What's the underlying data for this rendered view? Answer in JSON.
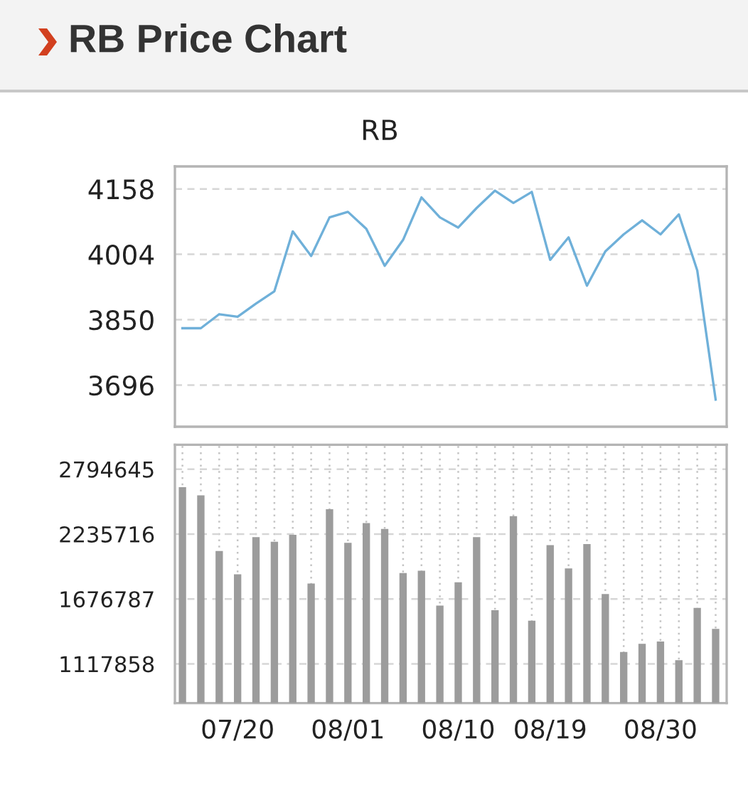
{
  "chart_data": [
    {
      "type": "line",
      "title": "RB Price Chart",
      "subtitle": "RB",
      "categories": [
        null,
        null,
        null,
        null,
        null,
        null,
        null,
        null,
        null,
        null,
        null,
        null,
        null,
        null,
        null,
        null,
        null,
        null,
        null,
        null,
        null,
        null,
        null,
        null,
        null,
        null,
        null,
        null,
        null,
        null
      ],
      "series": [
        {
          "color": "#6fb0d9",
          "values": [
            3830,
            3830,
            3863,
            3857,
            3888,
            3917,
            4058,
            4000,
            4091,
            4104,
            4064,
            3977,
            4038,
            4138,
            4091,
            4067,
            4113,
            4154,
            4125,
            4151,
            3991,
            4044,
            3930,
            4011,
            4051,
            4084,
            4051,
            4098,
            3966,
            3662
          ]
        }
      ],
      "ylim": [
        3598,
        4211
      ],
      "yticks": [
        3696,
        3850,
        4004,
        4158
      ],
      "grid": "y",
      "tick_labels": "y"
    },
    {
      "type": "bar",
      "categories": [
        null,
        null,
        null,
        "07/20",
        null,
        null,
        null,
        null,
        null,
        "08/01",
        null,
        null,
        null,
        null,
        null,
        "08/10",
        null,
        null,
        null,
        null,
        "08/19",
        null,
        null,
        null,
        null,
        null,
        "08/30",
        null,
        null,
        null
      ],
      "series": [
        {
          "color": "#9c9c9c",
          "values": [
            2640000,
            2570000,
            2090000,
            1890000,
            2210000,
            2170000,
            2230000,
            1810000,
            2450000,
            2160000,
            2330000,
            2280000,
            1900000,
            1920000,
            1620000,
            1820000,
            2210000,
            1580000,
            2390000,
            1490000,
            2140000,
            1940000,
            2150000,
            1720000,
            1220000,
            1290000,
            1310000,
            1150000,
            1600000,
            1420000
          ]
        }
      ],
      "ylim": [
        780000,
        3005000
      ],
      "yticks": [
        1117858,
        1676787,
        2235716,
        2794645
      ],
      "grid": true
    }
  ]
}
